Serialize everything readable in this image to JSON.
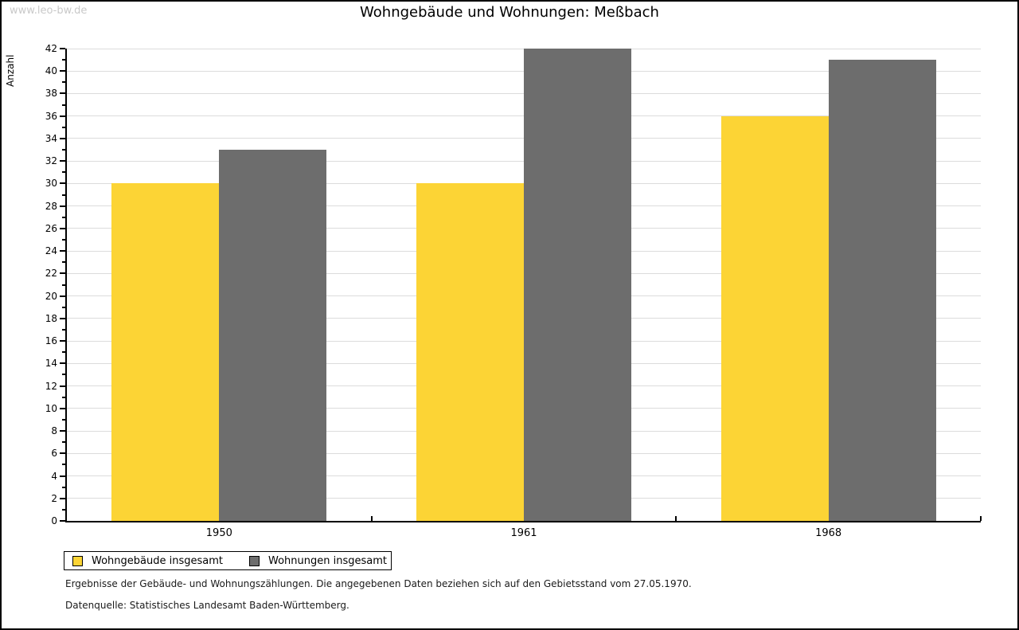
{
  "watermark": "www.leo-bw.de",
  "title": "Wohngebäude und Wohnungen: Meßbach",
  "chart_data": {
    "type": "bar",
    "title": "Wohngebäude und Wohnungen: Meßbach",
    "categories": [
      "1950",
      "1961",
      "1968"
    ],
    "series": [
      {
        "name": "Wohngebäude insgesamt",
        "color": "#FCD435",
        "values": [
          30,
          30,
          36
        ]
      },
      {
        "name": "Wohnungen insgesamt",
        "color": "#6D6D6D",
        "values": [
          33,
          42,
          41
        ]
      }
    ],
    "xlabel": "",
    "ylabel": "Anzahl",
    "ylim": [
      0,
      42
    ],
    "ytick_step": 2,
    "minor_tick_step": 1,
    "grid": true,
    "gridline_color": "#dcdcdc",
    "legend_position": "bottom-left"
  },
  "footnotes": {
    "line1": "Ergebnisse der Gebäude- und Wohnungszählungen. Die angegebenen Daten beziehen sich auf den Gebietsstand vom 27.05.1970.",
    "line2": "Datenquelle: Statistisches Landesamt Baden-Württemberg."
  }
}
